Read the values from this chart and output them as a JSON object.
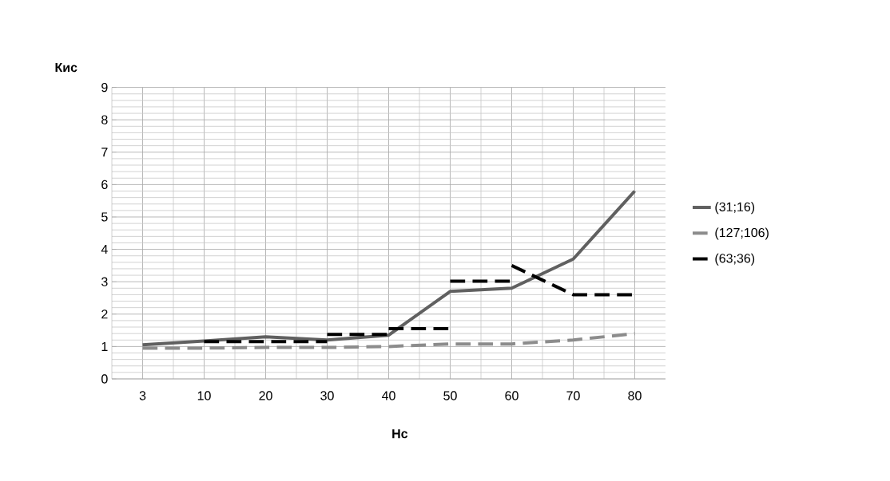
{
  "chart_data": {
    "type": "line",
    "ylabel": "Кис",
    "xlabel": "Нс",
    "categories": [
      "3",
      "10",
      "20",
      "30",
      "40",
      "50",
      "60",
      "70",
      "80"
    ],
    "ylim": [
      0,
      9
    ],
    "yticks": [
      0,
      1,
      2,
      3,
      4,
      5,
      6,
      7,
      8,
      9
    ],
    "grid": true,
    "legend": "right",
    "marker": "none",
    "series": [
      {
        "name": "(31;16)",
        "color": "#606060",
        "line_style": "solid",
        "values": [
          1.05,
          1.17,
          1.3,
          1.2,
          1.35,
          2.7,
          2.8,
          3.7,
          5.8
        ]
      },
      {
        "name": "(127;106)",
        "color": "#8c8c8c",
        "line_style": "dashed",
        "values": [
          0.95,
          0.95,
          0.97,
          0.97,
          1.0,
          1.08,
          1.08,
          1.2,
          1.4
        ]
      },
      {
        "name": "(63;36)",
        "color": "#000000",
        "line_style": "dashed",
        "x": [
          "10",
          "20",
          "30",
          "30",
          "30",
          "40",
          "40",
          "40",
          "50",
          "50",
          "50",
          "60",
          "60",
          "60",
          "70",
          "80"
        ],
        "values": [
          1.15,
          1.15,
          1.15,
          null,
          1.37,
          1.37,
          null,
          1.55,
          1.55,
          null,
          3.02,
          3.02,
          null,
          3.5,
          2.6,
          2.6
        ]
      }
    ]
  }
}
